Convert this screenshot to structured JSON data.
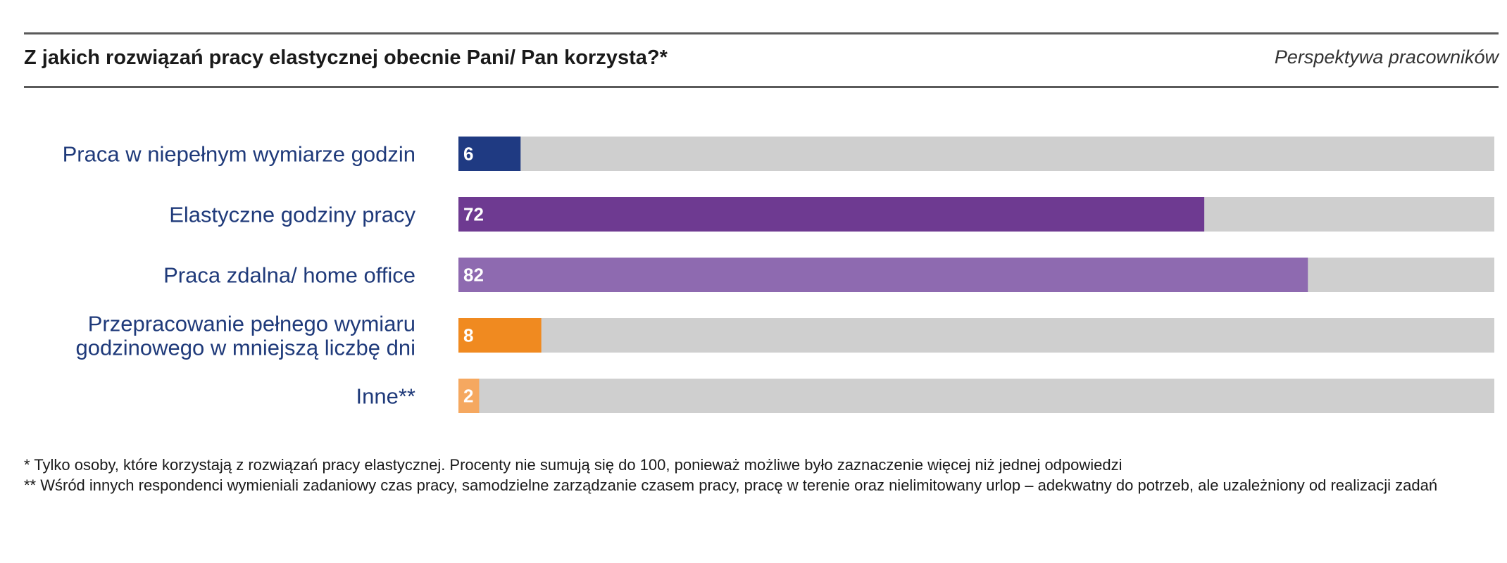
{
  "header": {
    "title": "Z jakich rozwiązań pracy elastycznej obecnie Pani/ Pan korzysta?*",
    "subtitle": "Perspektywa pracowników"
  },
  "chart_data": {
    "type": "bar",
    "orientation": "horizontal",
    "categories": [
      [
        "Praca w niepełnym wymiarze godzin"
      ],
      [
        "Elastyczne godziny pracy"
      ],
      [
        "Praca zdalna/ home office"
      ],
      [
        "Przepracowanie pełnego wymiaru",
        "godzinowego w mniejszą liczbę dni"
      ],
      [
        "Inne**"
      ]
    ],
    "values": [
      6,
      72,
      82,
      8,
      2
    ],
    "value_labels": [
      "6",
      "72",
      "82",
      "8",
      "2"
    ],
    "colors": [
      "#1f3a82",
      "#6e3a91",
      "#8e6ab0",
      "#f08a20",
      "#f5a860"
    ],
    "track_color": "#cfcfcf",
    "xlim": [
      0,
      100
    ],
    "grid": false,
    "legend": "none"
  },
  "footnotes": [
    "* Tylko osoby, które korzystają z rozwiązań pracy elastycznej. Procenty nie sumują się do 100, ponieważ możliwe było zaznaczenie więcej niż jednej odpowiedzi",
    "** Wśród innych respondenci wymieniali zadaniowy czas pracy, samodzielne zarządzanie czasem pracy, pracę w terenie oraz nielimitowany urlop – adekwatny do potrzeb, ale uzależniony od realizacji zadań"
  ]
}
